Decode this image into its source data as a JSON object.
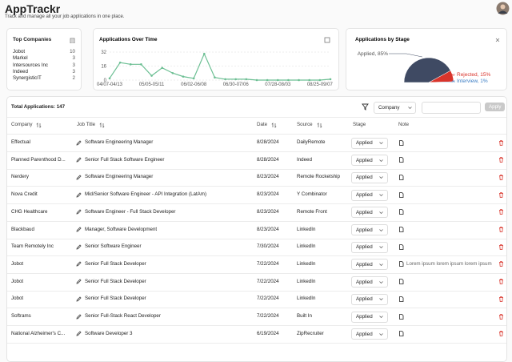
{
  "header": {
    "title": "AppTrackr",
    "subtitle": "Track and manage all your job applications in one place."
  },
  "top_companies": {
    "title": "Top Companies",
    "rows": [
      {
        "name": "Jobot",
        "count": 10
      },
      {
        "name": "Markel",
        "count": 3
      },
      {
        "name": "Intersources Inc",
        "count": 3
      },
      {
        "name": "Indeed",
        "count": 3
      },
      {
        "name": "SynergisticIT",
        "count": 2
      }
    ]
  },
  "chart_data": [
    {
      "type": "line",
      "title": "Applications Over Time",
      "categories": [
        "04/07-04/13",
        null,
        null,
        null,
        "05/05-05/11",
        null,
        null,
        null,
        "06/02-06/08",
        null,
        null,
        null,
        "06/30-07/06",
        null,
        null,
        null,
        "07/28-08/03",
        null,
        null,
        null,
        "08/25-09/07",
        null
      ],
      "values": [
        2,
        20,
        18,
        18,
        5,
        14,
        8,
        4,
        2,
        30,
        3,
        1,
        1,
        1,
        0,
        0,
        0,
        0,
        0,
        0,
        0,
        1
      ],
      "color": "#6cbf93",
      "ylim": [
        0,
        32
      ],
      "yticks": [
        0,
        16,
        32
      ],
      "grid": true
    },
    {
      "type": "pie",
      "title": "Applications by Stage",
      "values": [
        85,
        15,
        1
      ],
      "value_labels": [
        "Applied, 85%",
        "Rejected, 15%",
        "Interview, 1%"
      ],
      "colors": [
        "#3f4a63",
        "#d9342b",
        "#3b7dc4"
      ]
    }
  ],
  "table": {
    "total_label": "Total Applications:",
    "total": 147,
    "filter_field": "Company",
    "apply": "Apply",
    "columns": [
      "Company",
      "Job Title",
      "Date",
      "Source",
      "Stage",
      "Note"
    ],
    "rows": [
      [
        "Effectual",
        "Software Engineering Manager",
        "8/28/2024",
        "DailyRemote",
        "Applied",
        null
      ],
      [
        "Planned Parenthood D...",
        "Senior Full Stack Software Engineer",
        "8/28/2024",
        "Indeed",
        "Applied",
        null
      ],
      [
        "Nerdery",
        "Software Engineering Manager",
        "8/23/2024",
        "Remote Rocketship",
        "Applied",
        null
      ],
      [
        "Nova Credit",
        "Mid/Senior Software Engineer - API Integration (LatAm)",
        "8/23/2024",
        "Y Combinator",
        "Applied",
        null
      ],
      [
        "CHG Healthcare",
        "Software Engineer - Full Stack Developer",
        "8/23/2024",
        "Remote Front",
        "Applied",
        null
      ],
      [
        "Blackbaud",
        "Manager, Software Development",
        "8/23/2024",
        "LinkedIn",
        "Applied",
        null
      ],
      [
        "Team Remotely Inc",
        "Senior Software Engineer",
        "7/30/2024",
        "LinkedIn",
        "Applied",
        null
      ],
      [
        "Jobot",
        "Senior Full Stack Developer",
        "7/22/2024",
        "LinkedIn",
        "Applied",
        "Lorem ipsum lorem ipsum lorem ipsum"
      ],
      [
        "Jobot",
        "Senior Full Stack Developer",
        "7/22/2024",
        "LinkedIn",
        "Applied",
        null
      ],
      [
        "Jobot",
        "Senior Full Stack Developer",
        "7/22/2024",
        "LinkedIn",
        "Applied",
        null
      ],
      [
        "Softrams",
        "Senior Full-Stack React Developer",
        "7/22/2024",
        "Built In",
        "Applied",
        null
      ],
      [
        "National Alzheimer's C...",
        "Software Developer 3",
        "6/19/2024",
        "ZipRecruiter",
        "Applied",
        null
      ]
    ]
  }
}
